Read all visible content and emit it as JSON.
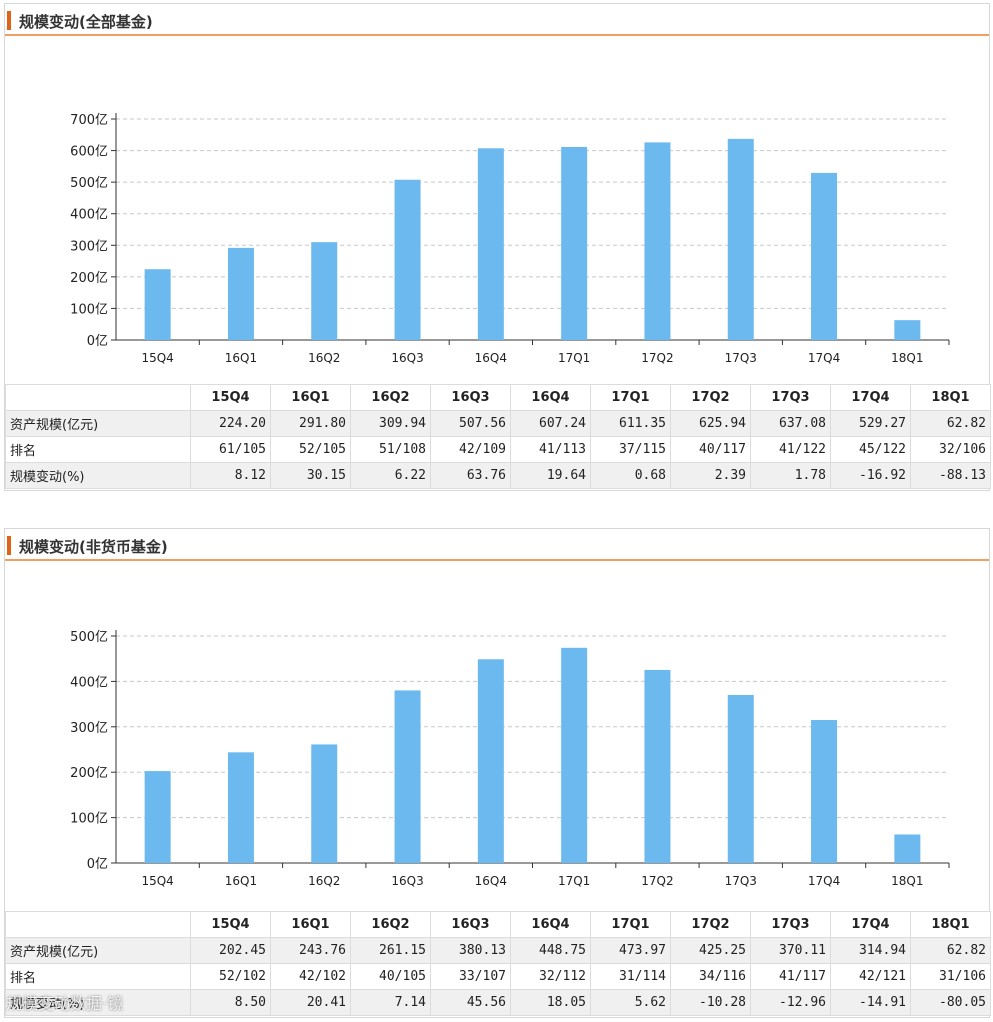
{
  "watermark": "规模变动数据·镜",
  "chart_data": [
    {
      "type": "bar",
      "panel_title": "规模变动(全部基金)",
      "title": "规模变动(全部基金)",
      "categories": [
        "15Q4",
        "16Q1",
        "16Q2",
        "16Q3",
        "16Q4",
        "17Q1",
        "17Q2",
        "17Q3",
        "17Q4",
        "18Q1"
      ],
      "values": [
        224.2,
        291.8,
        309.94,
        507.56,
        607.24,
        611.35,
        625.94,
        637.08,
        529.27,
        62.82
      ],
      "ylim": [
        0,
        700
      ],
      "yticks": [
        0,
        100,
        200,
        300,
        400,
        500,
        600,
        700
      ],
      "ytick_labels": [
        "0亿",
        "100亿",
        "200亿",
        "300亿",
        "400亿",
        "500亿",
        "600亿",
        "700亿"
      ],
      "grid": true,
      "bar_color": "#6cb9ef",
      "table": {
        "headers": [
          "",
          "15Q4",
          "16Q1",
          "16Q2",
          "16Q3",
          "16Q4",
          "17Q1",
          "17Q2",
          "17Q3",
          "17Q4",
          "18Q1"
        ],
        "rows": [
          {
            "label": "资产规模(亿元)",
            "cells": [
              "224.20",
              "291.80",
              "309.94",
              "507.56",
              "607.24",
              "611.35",
              "625.94",
              "637.08",
              "529.27",
              "62.82"
            ]
          },
          {
            "label": "排名",
            "cells": [
              "61/105",
              "52/105",
              "51/108",
              "42/109",
              "41/113",
              "37/115",
              "40/117",
              "41/122",
              "45/122",
              "32/106"
            ]
          },
          {
            "label": "规模变动(%)",
            "cells": [
              "8.12",
              "30.15",
              "6.22",
              "63.76",
              "19.64",
              "0.68",
              "2.39",
              "1.78",
              "-16.92",
              "-88.13"
            ]
          }
        ]
      }
    },
    {
      "type": "bar",
      "panel_title": "规模变动(非货币基金)",
      "title": "规模变动(非货币基金)",
      "categories": [
        "15Q4",
        "16Q1",
        "16Q2",
        "16Q3",
        "16Q4",
        "17Q1",
        "17Q2",
        "17Q3",
        "17Q4",
        "18Q1"
      ],
      "values": [
        202.45,
        243.76,
        261.15,
        380.13,
        448.75,
        473.97,
        425.25,
        370.11,
        314.94,
        62.82
      ],
      "ylim": [
        0,
        500
      ],
      "yticks": [
        0,
        100,
        200,
        300,
        400,
        500
      ],
      "ytick_labels": [
        "0亿",
        "100亿",
        "200亿",
        "300亿",
        "400亿",
        "500亿"
      ],
      "grid": true,
      "bar_color": "#6cb9ef",
      "table": {
        "headers": [
          "",
          "15Q4",
          "16Q1",
          "16Q2",
          "16Q3",
          "16Q4",
          "17Q1",
          "17Q2",
          "17Q3",
          "17Q4",
          "18Q1"
        ],
        "rows": [
          {
            "label": "资产规模(亿元)",
            "cells": [
              "202.45",
              "243.76",
              "261.15",
              "380.13",
              "448.75",
              "473.97",
              "425.25",
              "370.11",
              "314.94",
              "62.82"
            ]
          },
          {
            "label": "排名",
            "cells": [
              "52/102",
              "42/102",
              "40/105",
              "33/107",
              "32/112",
              "31/114",
              "34/116",
              "41/117",
              "42/121",
              "31/106"
            ]
          },
          {
            "label": "规模变动(%)",
            "cells": [
              "8.50",
              "20.41",
              "7.14",
              "45.56",
              "18.05",
              "5.62",
              "-10.28",
              "-12.96",
              "-14.91",
              "-80.05"
            ]
          }
        ]
      }
    }
  ]
}
